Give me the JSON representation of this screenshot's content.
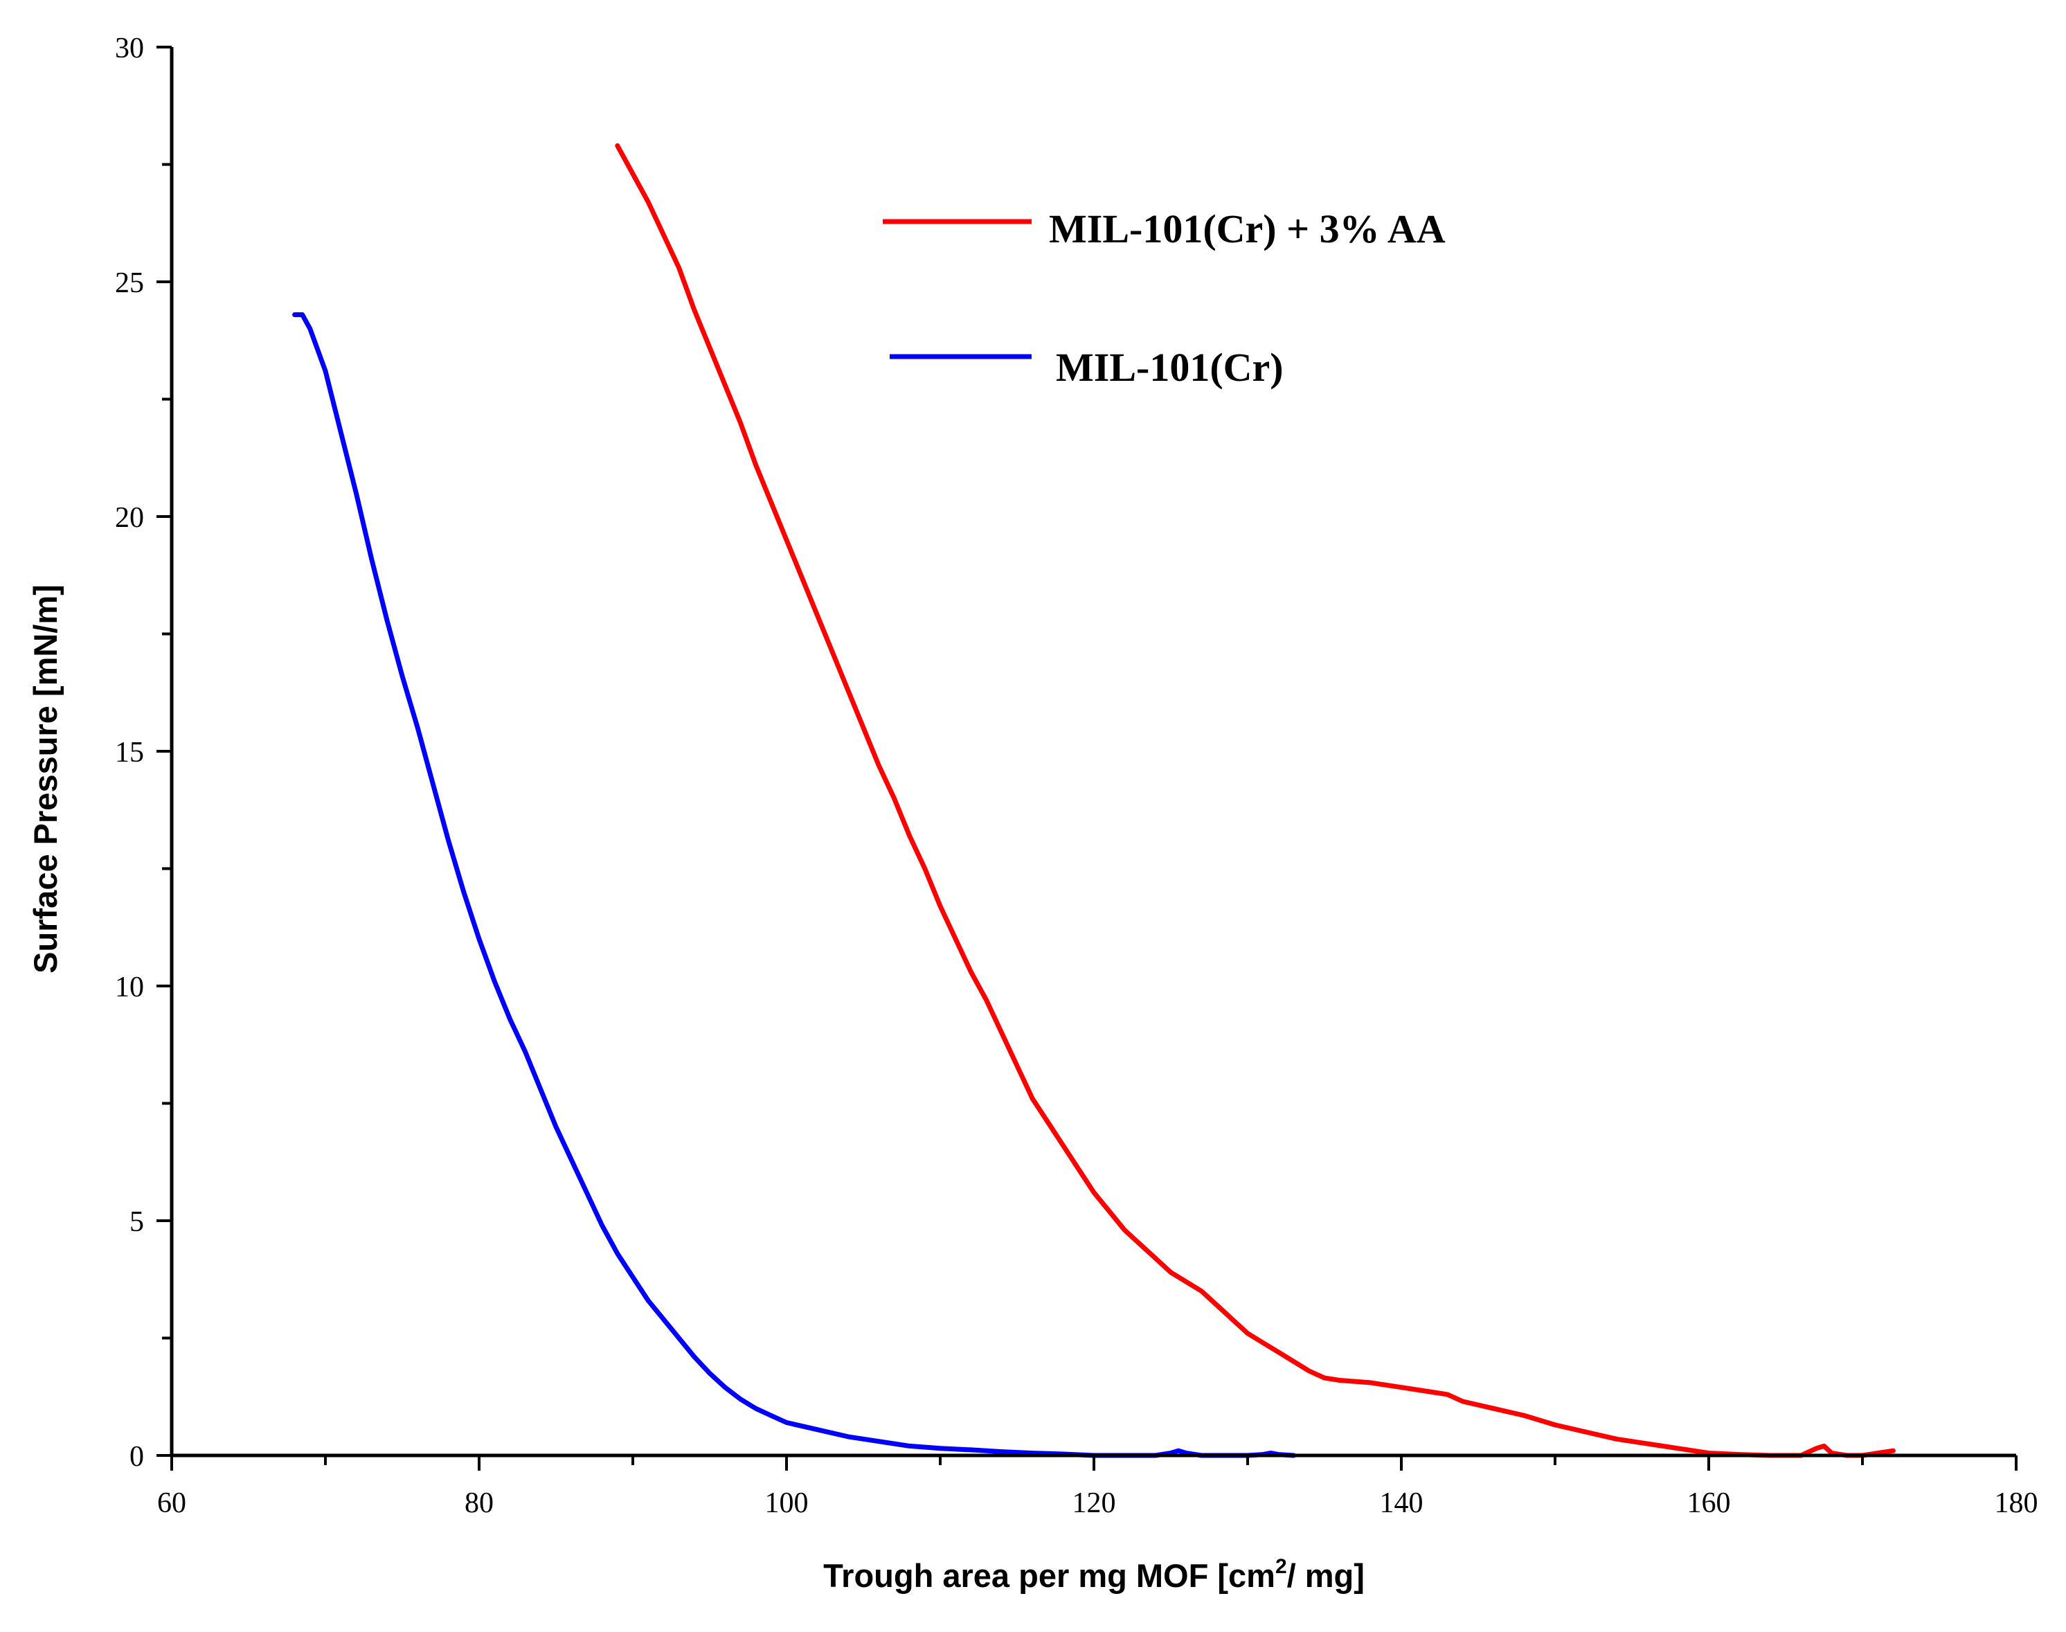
{
  "chart_data": {
    "type": "line",
    "title": "",
    "xlabel": "Trough area per mg MOF [cm",
    "xlabel_sup": "2",
    "xlabel_suffix": "/ mg]",
    "ylabel": "Surface Pressure [mN/m]",
    "xlim": [
      60,
      180
    ],
    "ylim": [
      0,
      30
    ],
    "xticks": [
      60,
      80,
      100,
      120,
      140,
      160,
      180
    ],
    "yticks": [
      0,
      5,
      10,
      15,
      20,
      25,
      30
    ],
    "x_tick_labels": [
      "60",
      "80",
      "100",
      "120",
      "140",
      "160",
      "180"
    ],
    "y_tick_labels": [
      "0",
      "5",
      "10",
      "15",
      "20",
      "25",
      "30"
    ],
    "legend_position": "top-center",
    "grid": false,
    "series": [
      {
        "name": "MIL-101(Cr) + 3% AA",
        "color": "#ff0000",
        "x": [
          89,
          90,
          91,
          92,
          93,
          94,
          95,
          96,
          97,
          98,
          99,
          100,
          101,
          102,
          103,
          104,
          105,
          106,
          107,
          108,
          109,
          110,
          111,
          112,
          113,
          114,
          115,
          116,
          117,
          118,
          119,
          120,
          121,
          122,
          123,
          124,
          125,
          126,
          127,
          128,
          129,
          130,
          131,
          132,
          133,
          134,
          135,
          136,
          138,
          140,
          142,
          143,
          144,
          146,
          148,
          150,
          152,
          154,
          156,
          158,
          160,
          162,
          164,
          166,
          167,
          167.5,
          168,
          169,
          170,
          171,
          172
        ],
        "y": [
          27.9,
          27.3,
          26.7,
          26.0,
          25.3,
          24.4,
          23.6,
          22.8,
          22.0,
          21.1,
          20.3,
          19.5,
          18.7,
          17.9,
          17.1,
          16.3,
          15.5,
          14.7,
          14.0,
          13.2,
          12.5,
          11.7,
          11.0,
          10.3,
          9.7,
          9.0,
          8.3,
          7.6,
          7.1,
          6.6,
          6.1,
          5.6,
          5.2,
          4.8,
          4.5,
          4.2,
          3.9,
          3.7,
          3.5,
          3.2,
          2.9,
          2.6,
          2.4,
          2.2,
          2.0,
          1.8,
          1.65,
          1.6,
          1.55,
          1.45,
          1.35,
          1.3,
          1.15,
          1.0,
          0.85,
          0.65,
          0.5,
          0.35,
          0.25,
          0.15,
          0.05,
          0.02,
          0.0,
          0.0,
          0.15,
          0.2,
          0.05,
          0.0,
          0.0,
          0.05,
          0.1
        ]
      },
      {
        "name": "MIL-101(Cr)",
        "color": "#0000ff",
        "x": [
          68,
          68.5,
          69,
          70,
          71,
          72,
          73,
          74,
          75,
          76,
          77,
          78,
          79,
          80,
          81,
          82,
          83,
          84,
          85,
          86,
          87,
          88,
          89,
          90,
          91,
          92,
          93,
          94,
          95,
          96,
          97,
          98,
          99,
          100,
          102,
          104,
          106,
          108,
          110,
          112,
          114,
          116,
          118,
          120,
          122,
          124,
          125,
          125.5,
          126,
          127,
          128,
          130,
          131,
          131.5,
          132,
          133
        ],
        "y": [
          24.3,
          24.3,
          24.0,
          23.1,
          21.8,
          20.5,
          19.1,
          17.8,
          16.6,
          15.5,
          14.3,
          13.1,
          12.0,
          11.0,
          10.1,
          9.3,
          8.6,
          7.8,
          7.0,
          6.3,
          5.6,
          4.9,
          4.3,
          3.8,
          3.3,
          2.9,
          2.5,
          2.1,
          1.75,
          1.45,
          1.2,
          1.0,
          0.85,
          0.7,
          0.55,
          0.4,
          0.3,
          0.2,
          0.15,
          0.12,
          0.08,
          0.05,
          0.03,
          0.0,
          0.0,
          0.0,
          0.05,
          0.1,
          0.05,
          0.0,
          0.0,
          0.0,
          0.02,
          0.05,
          0.02,
          0.0
        ]
      }
    ]
  }
}
